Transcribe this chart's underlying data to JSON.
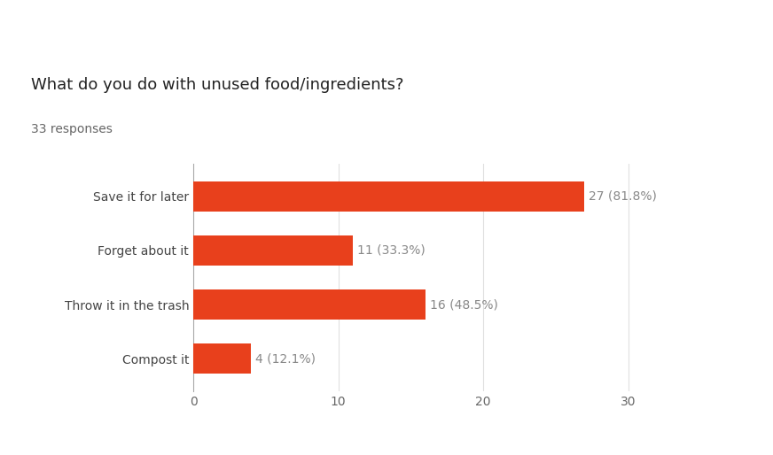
{
  "title": "What do you do with unused food/ingredients?",
  "subtitle": "33 responses",
  "categories": [
    "Save it for later",
    "Forget about it",
    "Throw it in the trash",
    "Compost it"
  ],
  "values": [
    27,
    11,
    16,
    4
  ],
  "labels": [
    "27 (81.8%)",
    "11 (33.3%)",
    "16 (48.5%)",
    "4 (12.1%)"
  ],
  "bar_color": "#E8401C",
  "background_color": "#ffffff",
  "xlim": [
    0,
    32
  ],
  "xticks": [
    0,
    10,
    20,
    30
  ],
  "title_fontsize": 13,
  "subtitle_fontsize": 10,
  "label_fontsize": 10,
  "tick_fontsize": 10,
  "category_fontsize": 10,
  "bar_height": 0.55,
  "grid_color": "#e0e0e0",
  "text_color": "#888888",
  "category_color": "#444444",
  "tick_color": "#666666"
}
